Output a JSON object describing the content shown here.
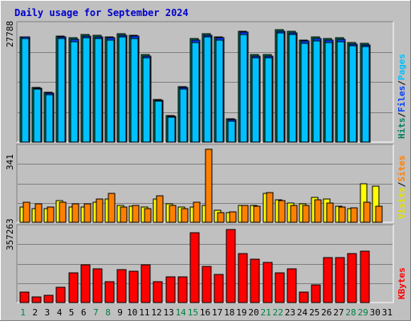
{
  "title": "Daily usage for September 2024",
  "colors": {
    "background": "#c0c0c0",
    "border_light": "#ffffff",
    "border_dark": "#808080",
    "title": "#0000cc",
    "hits": "#00805c",
    "files": "#0040ff",
    "pages": "#00c0ff",
    "visits": "#ffff00",
    "sites": "#ff8000",
    "kbytes": "#ff0000",
    "day_weekday": "#000000",
    "day_weekend": "#008040"
  },
  "chart_data": [
    {
      "type": "bar",
      "name_key": "hits-files-pages",
      "max_label": "27788",
      "ylim": [
        0,
        27788
      ],
      "legend": [
        {
          "text": "Hits",
          "color": "#00805c"
        },
        {
          "text": "/",
          "color": "#000000"
        },
        {
          "text": "Files",
          "color": "#0040ff"
        },
        {
          "text": "/",
          "color": "#000000"
        },
        {
          "text": "Pages",
          "color": "#00c0ff"
        }
      ],
      "categories": [
        "1",
        "2",
        "3",
        "4",
        "5",
        "6",
        "7",
        "8",
        "9",
        "10",
        "11",
        "12",
        "13",
        "14",
        "15",
        "16",
        "17",
        "18",
        "19",
        "20",
        "21",
        "22",
        "23",
        "24",
        "25",
        "26",
        "27",
        "28",
        "29",
        "30",
        "31"
      ],
      "series": [
        {
          "name": "Hits",
          "values": [
            25200,
            13200,
            12000,
            25500,
            25000,
            25800,
            25600,
            25300,
            26000,
            25700,
            21000,
            10300,
            6400,
            13400,
            24800,
            26000,
            25300,
            5600,
            26700,
            21000,
            21000,
            27000,
            26600,
            24600,
            25200,
            24800,
            25000,
            23900,
            23700,
            0,
            0
          ]
        },
        {
          "name": "Files",
          "values": [
            25200,
            13000,
            11800,
            25200,
            24700,
            25500,
            25300,
            25000,
            25700,
            25400,
            20700,
            10100,
            6200,
            13100,
            24500,
            25700,
            25000,
            5400,
            26400,
            20700,
            20700,
            26700,
            26300,
            24300,
            24900,
            24500,
            24700,
            23600,
            23400,
            0,
            0
          ]
        },
        {
          "name": "Pages",
          "values": [
            24900,
            12700,
            11400,
            24800,
            24200,
            25000,
            24800,
            24500,
            25200,
            24900,
            20200,
            9800,
            6000,
            12700,
            24000,
            25200,
            24500,
            5000,
            25900,
            20200,
            20200,
            26200,
            25800,
            23800,
            24400,
            24000,
            24200,
            23100,
            22900,
            0,
            0
          ]
        }
      ]
    },
    {
      "type": "bar",
      "name_key": "visits-sites",
      "max_label": "341",
      "ylim": [
        0,
        341
      ],
      "legend": [
        {
          "text": "Visits",
          "color": "#e0e000"
        },
        {
          "text": "/",
          "color": "#000000"
        },
        {
          "text": "Sites",
          "color": "#ff8000"
        }
      ],
      "categories": [
        "1",
        "2",
        "3",
        "4",
        "5",
        "6",
        "7",
        "8",
        "9",
        "10",
        "11",
        "12",
        "13",
        "14",
        "15",
        "16",
        "17",
        "18",
        "19",
        "20",
        "21",
        "22",
        "23",
        "24",
        "25",
        "26",
        "27",
        "28",
        "29",
        "30",
        "31"
      ],
      "series": [
        {
          "name": "Visits",
          "values": [
            70,
            65,
            65,
            100,
            70,
            70,
            95,
            110,
            80,
            75,
            70,
            110,
            85,
            70,
            70,
            80,
            55,
            45,
            78,
            80,
            135,
            105,
            90,
            85,
            115,
            110,
            75,
            65,
            180,
            170,
            0
          ]
        },
        {
          "name": "Sites",
          "values": [
            92,
            88,
            70,
            93,
            85,
            85,
            110,
            135,
            70,
            78,
            62,
            125,
            78,
            63,
            93,
            340,
            45,
            50,
            78,
            75,
            140,
            100,
            78,
            80,
            105,
            90,
            70,
            68,
            95,
            75,
            0
          ]
        }
      ]
    },
    {
      "type": "bar",
      "name_key": "kbytes",
      "max_label": "357263",
      "ylim": [
        0,
        357263
      ],
      "legend": [
        {
          "text": "KBytes",
          "color": "#ff0000"
        }
      ],
      "categories": [
        "1",
        "2",
        "3",
        "4",
        "5",
        "6",
        "7",
        "8",
        "9",
        "10",
        "11",
        "12",
        "13",
        "14",
        "15",
        "16",
        "17",
        "18",
        "19",
        "20",
        "21",
        "22",
        "23",
        "24",
        "25",
        "26",
        "27",
        "28",
        "29",
        "30",
        "31"
      ],
      "series": [
        {
          "name": "KBytes",
          "values": [
            50000,
            28000,
            35000,
            73000,
            145000,
            185000,
            165000,
            103000,
            160000,
            152000,
            183000,
            103000,
            125000,
            127000,
            340000,
            175000,
            137000,
            357263,
            240000,
            213000,
            198000,
            145000,
            165000,
            52000,
            85000,
            218000,
            218000,
            240000,
            253000,
            0,
            0
          ]
        }
      ]
    }
  ],
  "days": [
    {
      "label": "1",
      "weekend": true
    },
    {
      "label": "2",
      "weekend": false
    },
    {
      "label": "3",
      "weekend": false
    },
    {
      "label": "4",
      "weekend": false
    },
    {
      "label": "5",
      "weekend": false
    },
    {
      "label": "6",
      "weekend": false
    },
    {
      "label": "7",
      "weekend": true
    },
    {
      "label": "8",
      "weekend": true
    },
    {
      "label": "9",
      "weekend": false
    },
    {
      "label": "10",
      "weekend": false
    },
    {
      "label": "11",
      "weekend": false
    },
    {
      "label": "12",
      "weekend": false
    },
    {
      "label": "13",
      "weekend": false
    },
    {
      "label": "14",
      "weekend": true
    },
    {
      "label": "15",
      "weekend": true
    },
    {
      "label": "16",
      "weekend": false
    },
    {
      "label": "17",
      "weekend": false
    },
    {
      "label": "18",
      "weekend": false
    },
    {
      "label": "19",
      "weekend": false
    },
    {
      "label": "20",
      "weekend": false
    },
    {
      "label": "21",
      "weekend": true
    },
    {
      "label": "22",
      "weekend": true
    },
    {
      "label": "23",
      "weekend": false
    },
    {
      "label": "24",
      "weekend": false
    },
    {
      "label": "25",
      "weekend": false
    },
    {
      "label": "26",
      "weekend": false
    },
    {
      "label": "27",
      "weekend": false
    },
    {
      "label": "28",
      "weekend": true
    },
    {
      "label": "29",
      "weekend": true
    },
    {
      "label": "30",
      "weekend": false
    },
    {
      "label": "31",
      "weekend": false
    }
  ]
}
